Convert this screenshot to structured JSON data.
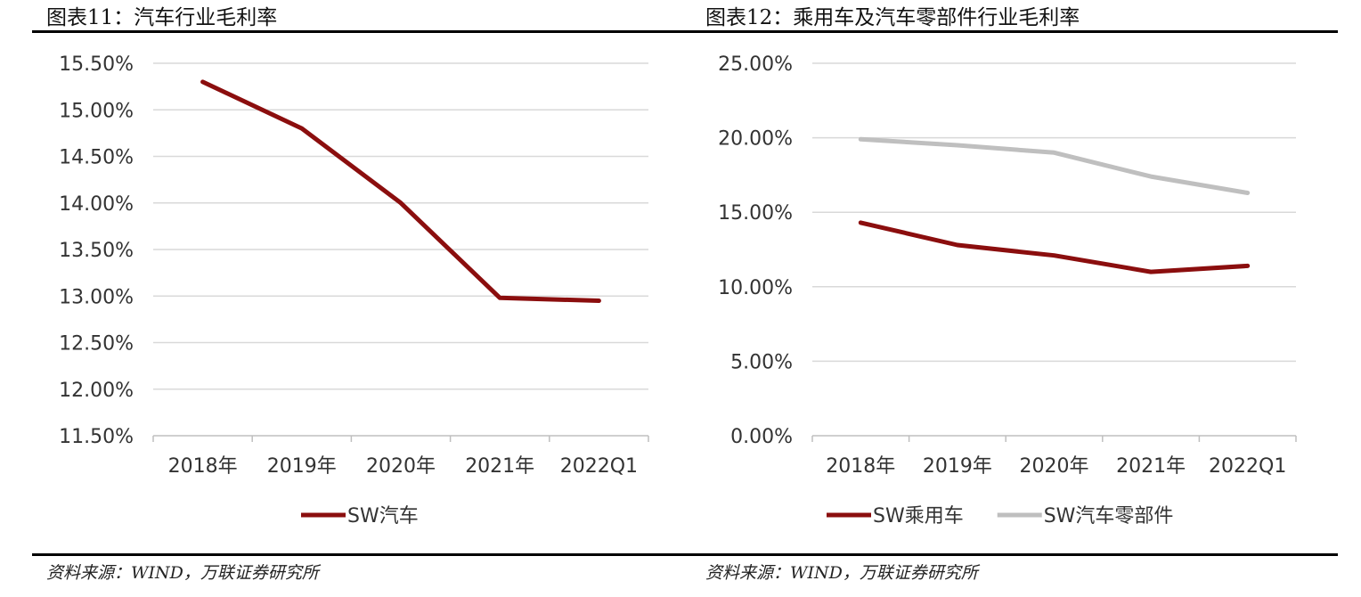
{
  "panels": [
    {
      "title": "图表11：汽车行业毛利率",
      "source": "资料来源：WIND，万联证券研究所"
    },
    {
      "title": "图表12：乘用车及汽车零部件行业毛利率",
      "source": "资料来源：WIND，万联证券研究所"
    }
  ],
  "chart_data": [
    {
      "type": "line",
      "categories": [
        "2018年",
        "2019年",
        "2020年",
        "2021年",
        "2022Q1"
      ],
      "yticks": [
        "15.50%",
        "15.00%",
        "14.50%",
        "14.00%",
        "13.50%",
        "13.00%",
        "12.50%",
        "12.00%",
        "11.50%"
      ],
      "ylim": [
        11.5,
        15.5
      ],
      "grid": true,
      "legend_position": "bottom",
      "series": [
        {
          "name": "SW汽车",
          "color": "#8B0E0E",
          "values": [
            15.3,
            14.8,
            14.0,
            12.98,
            12.95
          ]
        }
      ]
    },
    {
      "type": "line",
      "categories": [
        "2018年",
        "2019年",
        "2020年",
        "2021年",
        "2022Q1"
      ],
      "yticks": [
        "25.00%",
        "20.00%",
        "15.00%",
        "10.00%",
        "5.00%",
        "0.00%"
      ],
      "ylim": [
        0,
        25
      ],
      "grid": true,
      "legend_position": "bottom",
      "series": [
        {
          "name": "SW乘用车",
          "color": "#8B0E0E",
          "values": [
            14.3,
            12.8,
            12.1,
            11.0,
            11.4
          ]
        },
        {
          "name": "SW汽车零部件",
          "color": "#BFBFBF",
          "values": [
            19.9,
            19.5,
            19.0,
            17.4,
            16.3
          ]
        }
      ]
    }
  ]
}
